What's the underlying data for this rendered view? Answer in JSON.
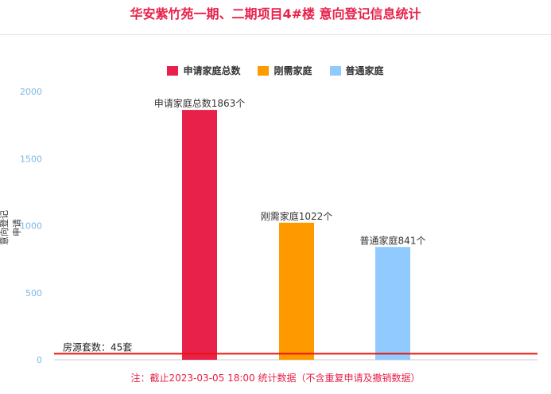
{
  "chart_data": {
    "type": "bar",
    "title": "华安紫竹苑一期、二期项目4#楼 意向登记信息统计",
    "ylabel": "意向登记申请",
    "ylim": [
      0,
      2000
    ],
    "yticks": [
      0,
      500,
      1000,
      1500,
      2000
    ],
    "legend_position": "top-center",
    "grid": false,
    "series": [
      {
        "name": "申请家庭总数",
        "value": 1863,
        "color": "#e8214a",
        "label": "申请家庭总数1863个"
      },
      {
        "name": "刚需家庭",
        "value": 1022,
        "color": "#ff9900",
        "label": "刚需家庭1022个"
      },
      {
        "name": "普通家庭",
        "value": 841,
        "color": "#90caff",
        "label": "普通家庭841个"
      }
    ],
    "reference_line": {
      "value": 45,
      "label": "房源套数：45套",
      "color": "#e8140f"
    },
    "footnote": "注：截止2023-03-05 18:00 统计数据（不含重复申请及撤销数据）"
  }
}
